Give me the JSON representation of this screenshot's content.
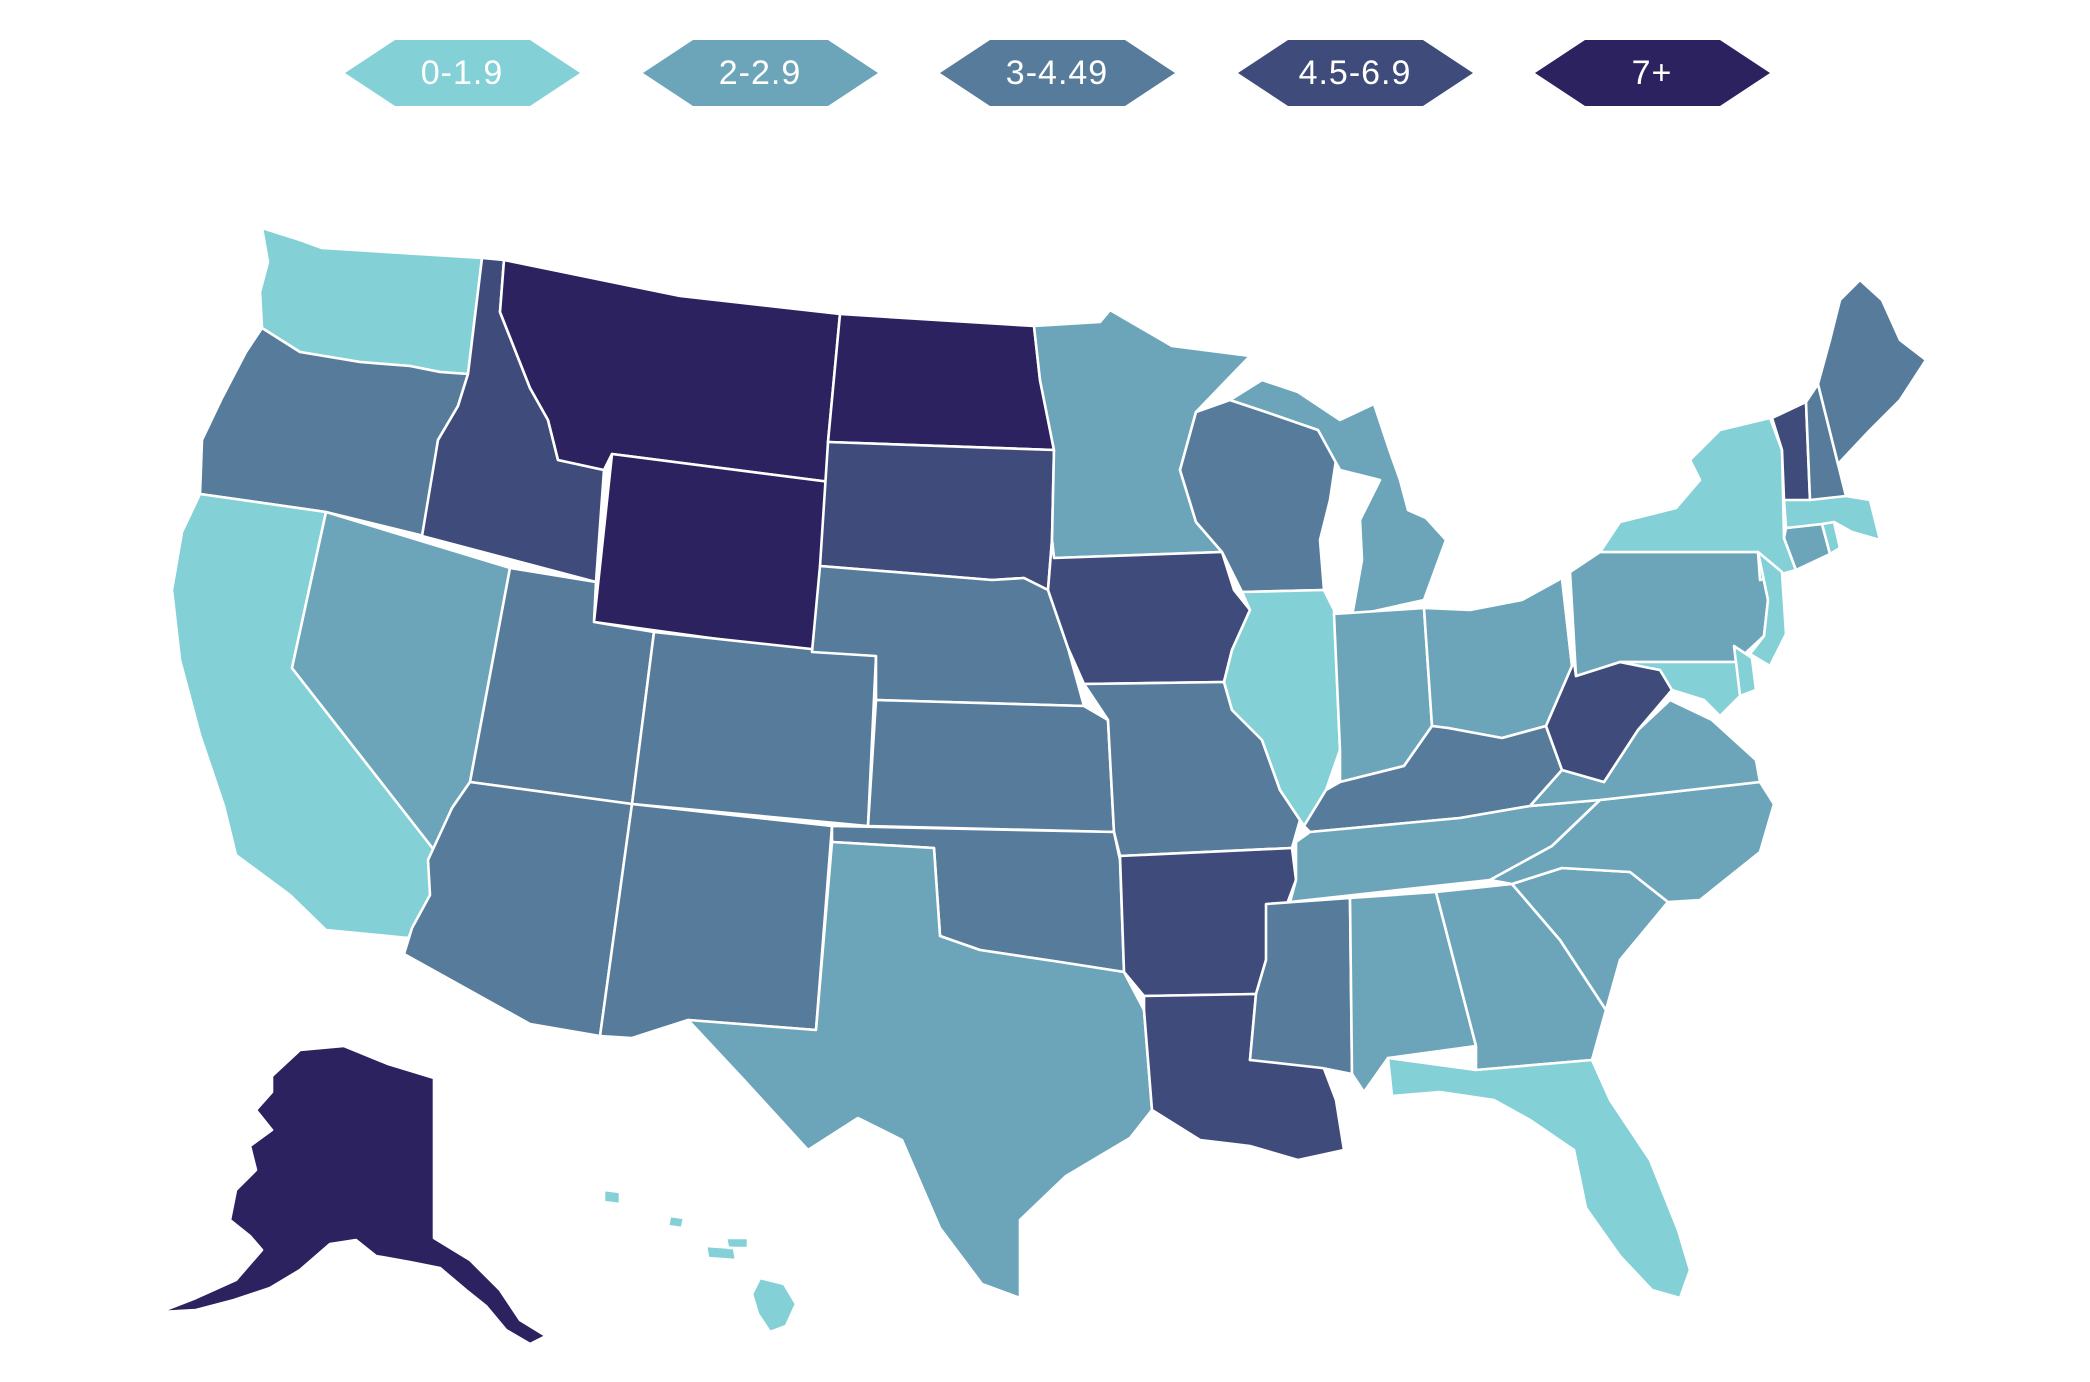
{
  "colors": {
    "bin_0": "#84d0d7",
    "bin_1": "#6ca5b9",
    "bin_2": "#577b9b",
    "bin_3": "#3f4c7b",
    "bin_4": "#2d2260"
  },
  "legend": [
    {
      "label": "0-1.9",
      "bin": 0
    },
    {
      "label": "2-2.9",
      "bin": 1
    },
    {
      "label": "3-4.49",
      "bin": 2
    },
    {
      "label": "4.5-6.9",
      "bin": 3
    },
    {
      "label": "7+",
      "bin": 4
    }
  ],
  "states": {
    "WA": 0,
    "OR": 2,
    "CA": 0,
    "ID": 3,
    "NV": 1,
    "MT": 4,
    "WY": 4,
    "UT": 2,
    "AZ": 2,
    "CO": 2,
    "NM": 2,
    "ND": 4,
    "SD": 3,
    "NE": 2,
    "KS": 2,
    "OK": 2,
    "TX": 1,
    "MN": 1,
    "IA": 3,
    "MO": 2,
    "AR": 3,
    "LA": 3,
    "WI": 2,
    "IL": 0,
    "MI": 1,
    "IN": 1,
    "OH": 1,
    "KY": 2,
    "TN": 1,
    "MS": 2,
    "AL": 1,
    "GA": 1,
    "FL": 0,
    "SC": 1,
    "NC": 1,
    "VA": 1,
    "WV": 3,
    "PA": 1,
    "NY": 0,
    "VT": 3,
    "NH": 2,
    "ME": 2,
    "MA": 0,
    "RI": 0,
    "CT": 1,
    "NJ": 0,
    "DE": 0,
    "MD": 0,
    "AK": 4,
    "HI": 0
  }
}
